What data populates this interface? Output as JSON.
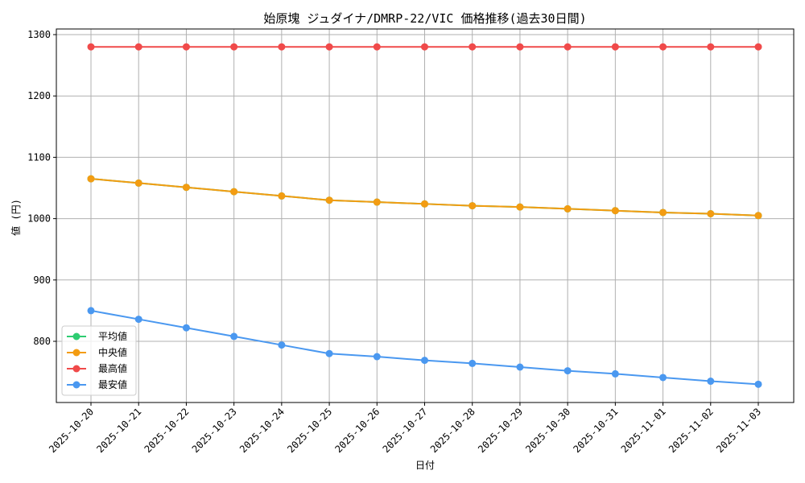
{
  "chart_data": {
    "type": "line",
    "title": "始原塊 ジュダイナ/DMRP-22/VIC 価格推移(過去30日間)",
    "xlabel": "日付",
    "ylabel": "値 (円)",
    "x": [
      "2025-10-20",
      "2025-10-21",
      "2025-10-22",
      "2025-10-23",
      "2025-10-24",
      "2025-10-25",
      "2025-10-26",
      "2025-10-27",
      "2025-10-28",
      "2025-10-29",
      "2025-10-30",
      "2025-10-31",
      "2025-11-01",
      "2025-11-02",
      "2025-11-03"
    ],
    "ylim": [
      700,
      1300
    ],
    "yticks": [
      800,
      900,
      1000,
      1100,
      1200,
      1300
    ],
    "grid": true,
    "legend_position": "lower-left",
    "series": [
      {
        "name": "平均値",
        "color": "#2ecc71",
        "values": [
          1065,
          1058,
          1051,
          1044,
          1037,
          1030,
          1027,
          1024,
          1021,
          1019,
          1016,
          1013,
          1010,
          1008,
          1005
        ]
      },
      {
        "name": "中央値",
        "color": "#f39c12",
        "values": [
          1065,
          1058,
          1051,
          1044,
          1037,
          1030,
          1027,
          1024,
          1021,
          1019,
          1016,
          1013,
          1010,
          1008,
          1005
        ]
      },
      {
        "name": "最高値",
        "color": "#f04a4a",
        "values": [
          1280,
          1280,
          1280,
          1280,
          1280,
          1280,
          1280,
          1280,
          1280,
          1280,
          1280,
          1280,
          1280,
          1280,
          1280
        ]
      },
      {
        "name": "最安値",
        "color": "#4a98f0",
        "values": [
          850,
          836,
          822,
          808,
          794,
          780,
          775,
          769,
          764,
          758,
          752,
          747,
          741,
          735,
          730
        ]
      }
    ]
  }
}
